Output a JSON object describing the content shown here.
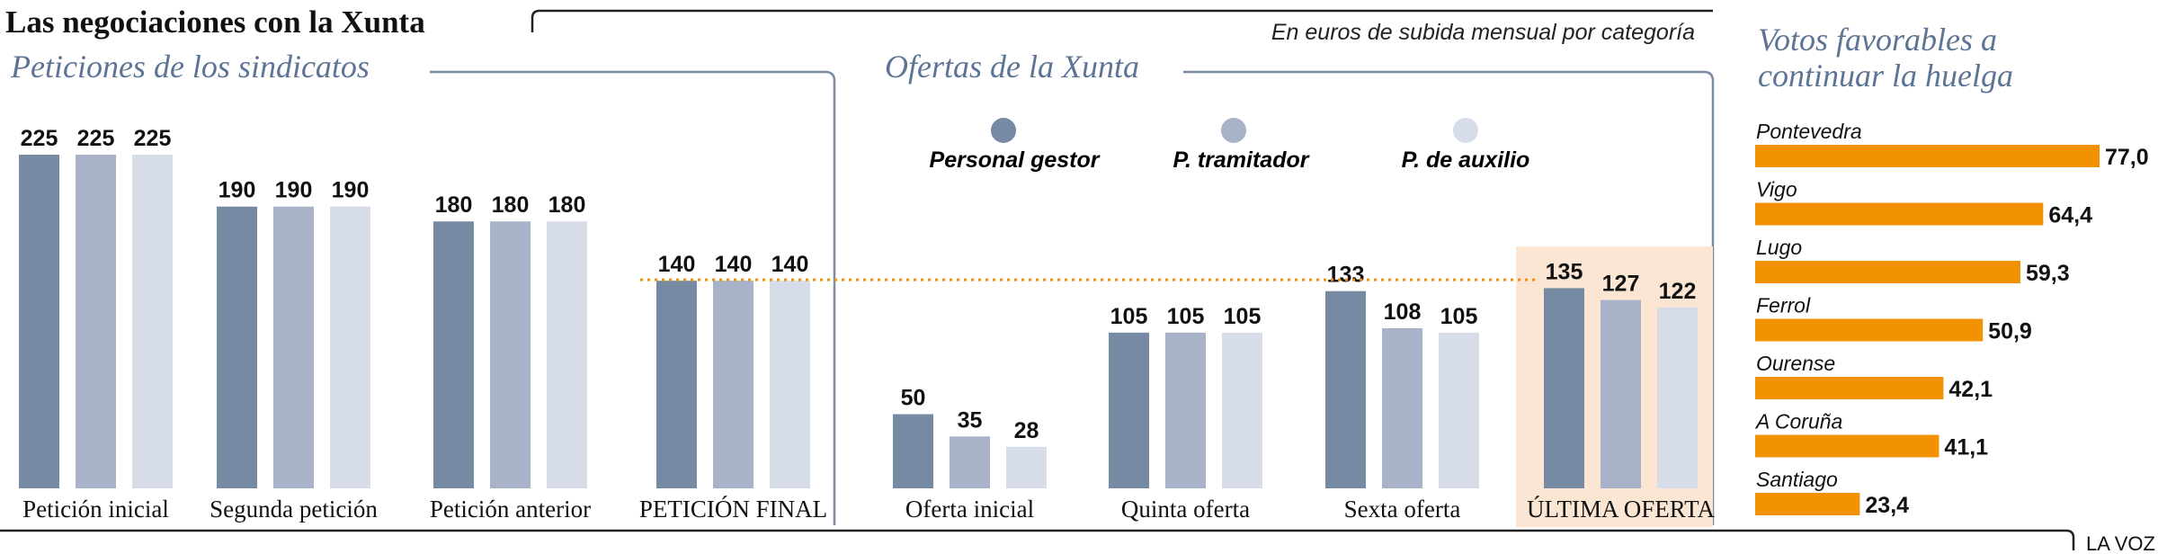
{
  "title": "Las negociaciones con la Xunta",
  "subtitle": "En euros de subida mensual por categoría",
  "brand": "LA VOZ",
  "colors": {
    "gestor": "#768aa4",
    "tramitador": "#a8b3ca",
    "auxilio": "#d7dde8",
    "heading": "#5d7495",
    "frame": "#7c8ba4",
    "highlight": "#fbe6d3",
    "orange": "#f39200"
  },
  "left_panel": {
    "title": "Peticiones de los sindicatos"
  },
  "middle_panel": {
    "title": "Ofertas de la Xunta"
  },
  "right_panel": {
    "title_line1": "Votos favorables a",
    "title_line2": "continuar la huelga"
  },
  "legend": [
    {
      "label": "Personal gestor",
      "series": "gestor"
    },
    {
      "label": "P. tramitador",
      "series": "tramitador"
    },
    {
      "label": "P. de auxilio",
      "series": "auxilio"
    }
  ],
  "chart_data": [
    {
      "type": "bar",
      "title": "Las negociaciones con la Xunta",
      "subtitle": "En euros de subida mensual por categoría",
      "categories": [
        "Petición inicial",
        "Segunda petición",
        "Petición anterior",
        "PETICIÓN FINAL",
        "Oferta inicial",
        "Quinta oferta",
        "Sexta oferta",
        "ÚLTIMA OFERTA"
      ],
      "series": [
        {
          "name": "Personal gestor",
          "values": [
            225,
            190,
            180,
            140,
            50,
            105,
            133,
            135
          ]
        },
        {
          "name": "P. tramitador",
          "values": [
            225,
            190,
            180,
            140,
            35,
            105,
            108,
            127
          ]
        },
        {
          "name": "P. de auxilio",
          "values": [
            225,
            190,
            180,
            140,
            28,
            105,
            105,
            122
          ]
        }
      ],
      "groups": [
        {
          "name": "Peticiones de los sindicatos",
          "categories": [
            0,
            1,
            2,
            3
          ]
        },
        {
          "name": "Ofertas de la Xunta",
          "categories": [
            4,
            5,
            6,
            7
          ]
        }
      ],
      "reference_line": {
        "value": 140,
        "style": "dotted"
      },
      "highlighted_category": "ÚLTIMA OFERTA",
      "ylim": [
        0,
        225
      ],
      "grid": false,
      "legend_position": "top"
    },
    {
      "type": "bar",
      "orientation": "horizontal",
      "title": "Votos favorables a continuar la huelga",
      "categories": [
        "Pontevedra",
        "Vigo",
        "Lugo",
        "Ferrol",
        "Ourense",
        "A Coruña",
        "Santiago"
      ],
      "values": [
        77.0,
        64.4,
        59.3,
        50.9,
        42.1,
        41.1,
        23.4
      ],
      "value_labels": [
        "77,0",
        "64,4",
        "59,3",
        "50,9",
        "42,1",
        "41,1",
        "23,4"
      ],
      "xlim": [
        0,
        77.0
      ],
      "grid": false
    }
  ]
}
